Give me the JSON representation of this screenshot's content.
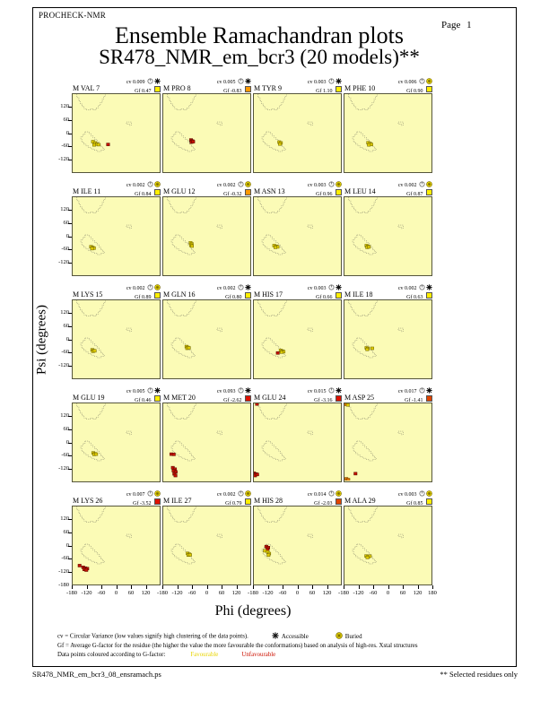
{
  "page": {
    "app_label": "PROCHECK-NMR",
    "page_label": "Page  1",
    "title": "Ensemble Ramachandran plots",
    "subtitle": "SR478_NMR_em_bcr3 (20 models)**",
    "footer_left": "SR478_NMR_em_bcr3_08_ensramach.ps",
    "footer_right": "** Selected residues only"
  },
  "axes": {
    "x_label": "Phi (degrees)",
    "y_label": "Psi (degrees)",
    "x_ticks": [
      -180,
      -120,
      -60,
      0,
      60,
      120
    ],
    "x_end_tick": 180,
    "y_ticks": [
      120,
      60,
      0,
      -60,
      -120
    ],
    "y_bottom_tick": -180,
    "x_range": [
      -180,
      180
    ],
    "y_range": [
      -180,
      180
    ]
  },
  "legend": {
    "cv_text": "cv = Circular Variance (low values signify high clustering of the data points).",
    "accessible_label": "Accessible",
    "buried_label": "Buried",
    "gf_text": "Gf = Average G-factor for the residue (the higher the value the more favourable the conformations)  based on analysis of high-res. Xstal structures",
    "colour_text": "Data points coloured according to G-factor:",
    "favourable_label": "Favourable",
    "unfavourable_label": "Unfavourable"
  },
  "colors": {
    "plot_bg": "#fbfbb6",
    "plot_border": "#55553c",
    "region_line": "#6b6b5a",
    "point_fill": {
      "y": "#ddca00",
      "r": "#c41200",
      "o": "#e07800"
    },
    "point_stroke": {
      "y": "#6e6400",
      "r": "#550800",
      "o": "#6e3a00"
    },
    "gf_swatch": {
      "yellow": "#ffee00",
      "orange": "#ff9900",
      "redorange": "#e04400",
      "red": "#dd1100"
    }
  },
  "chart_data": {
    "type": "scatter",
    "grid": "5 rows x 4 columns",
    "title": "Ensemble Ramachandran plots",
    "x_label": "Phi (degrees)",
    "y_label": "Psi (degrees)",
    "x_range": [
      -180,
      180
    ],
    "y_range": [
      -180,
      180
    ],
    "point_color_code": {
      "y": "favourable (yellow)",
      "r": "unfavourable (red)",
      "o": "intermediate (orange)"
    },
    "subplots": [
      {
        "title": "M VAL 7",
        "cv": "0.009",
        "gf": "0.47",
        "access": "accessible",
        "gf_color": "yellow",
        "points": [
          [
            -95,
            -42,
            "y"
          ],
          [
            -86,
            -48,
            "y"
          ],
          [
            -79,
            -53,
            "y"
          ],
          [
            -90,
            -57,
            "y"
          ],
          [
            -72,
            -56,
            "y"
          ],
          [
            -32,
            -55,
            "r"
          ]
        ]
      },
      {
        "title": "M PRO 8",
        "cv": "0.005",
        "gf": "-0.83",
        "access": "accessible",
        "gf_color": "orange",
        "points": [
          [
            -64,
            -34,
            "r"
          ],
          [
            -58,
            -39,
            "r"
          ],
          [
            -62,
            -44,
            "r"
          ],
          [
            -55,
            -42,
            "r"
          ]
        ]
      },
      {
        "title": "M TYR 9",
        "cv": "0.003",
        "gf": "1.10",
        "access": "accessible",
        "gf_color": "yellow",
        "points": [
          [
            -74,
            -44,
            "y"
          ],
          [
            -67,
            -48,
            "y"
          ],
          [
            -71,
            -53,
            "y"
          ]
        ]
      },
      {
        "title": "M PHE 10",
        "cv": "0.006",
        "gf": "0.90",
        "access": "buried",
        "gf_color": "yellow",
        "points": [
          [
            -81,
            -47,
            "y"
          ],
          [
            -73,
            -51,
            "y"
          ],
          [
            -68,
            -55,
            "y"
          ],
          [
            -78,
            -57,
            "y"
          ]
        ]
      },
      {
        "title": "M ILE 11",
        "cv": "0.002",
        "gf": "0.84",
        "access": "buried",
        "gf_color": "yellow",
        "points": [
          [
            -103,
            -51,
            "y"
          ],
          [
            -96,
            -55,
            "y"
          ],
          [
            -91,
            -58,
            "y"
          ],
          [
            -99,
            -60,
            "y"
          ]
        ]
      },
      {
        "title": "M GLU 12",
        "cv": "0.002",
        "gf": "-0.32",
        "access": "buried",
        "gf_color": "orange",
        "points": [
          [
            -66,
            -33,
            "y"
          ],
          [
            -61,
            -38,
            "y"
          ],
          [
            -64,
            -44,
            "y"
          ],
          [
            -60,
            -48,
            "y"
          ]
        ]
      },
      {
        "title": "M ASN 13",
        "cv": "0.003",
        "gf": "0.96",
        "access": "buried",
        "gf_color": "yellow",
        "points": [
          [
            -95,
            -46,
            "y"
          ],
          [
            -87,
            -49,
            "y"
          ],
          [
            -81,
            -52,
            "y"
          ],
          [
            -90,
            -54,
            "y"
          ]
        ]
      },
      {
        "title": "M LEU 14",
        "cv": "0.002",
        "gf": "0.87",
        "access": "buried",
        "gf_color": "yellow",
        "points": [
          [
            -88,
            -46,
            "y"
          ],
          [
            -82,
            -50,
            "y"
          ],
          [
            -85,
            -54,
            "y"
          ],
          [
            -78,
            -52,
            "y"
          ]
        ]
      },
      {
        "title": "M LYS 15",
        "cv": "0.002",
        "gf": "0.89",
        "access": "buried",
        "gf_color": "yellow",
        "points": [
          [
            -98,
            -51,
            "y"
          ],
          [
            -92,
            -55,
            "y"
          ],
          [
            -95,
            -58,
            "y"
          ],
          [
            -88,
            -56,
            "y"
          ]
        ]
      },
      {
        "title": "M GLN 16",
        "cv": "0.002",
        "gf": "0.80",
        "access": "accessible",
        "gf_color": "yellow",
        "points": [
          [
            -83,
            -36,
            "y"
          ],
          [
            -77,
            -40,
            "y"
          ],
          [
            -80,
            -44,
            "y"
          ],
          [
            -73,
            -42,
            "y"
          ]
        ]
      },
      {
        "title": "M HIS 17",
        "cv": "0.003",
        "gf": "0.66",
        "access": "accessible",
        "gf_color": "yellow",
        "points": [
          [
            -68,
            -54,
            "y"
          ],
          [
            -61,
            -57,
            "y"
          ],
          [
            -56,
            -60,
            "y"
          ],
          [
            -64,
            -62,
            "y"
          ],
          [
            -80,
            -66,
            "r"
          ]
        ]
      },
      {
        "title": "M ILE 18",
        "cv": "0.002",
        "gf": "0.63",
        "access": "accessible",
        "gf_color": "yellow",
        "points": [
          [
            -88,
            -42,
            "y"
          ],
          [
            -82,
            -45,
            "y"
          ],
          [
            -85,
            -49,
            "y"
          ],
          [
            -64,
            -44,
            "y"
          ]
        ]
      },
      {
        "title": "M GLU 19",
        "cv": "0.005",
        "gf": "0.46",
        "access": "accessible",
        "gf_color": "yellow",
        "points": [
          [
            -94,
            -51,
            "y"
          ],
          [
            -87,
            -55,
            "y"
          ],
          [
            -90,
            -58,
            "y"
          ],
          [
            -82,
            -57,
            "y"
          ]
        ]
      },
      {
        "title": "M MET 20",
        "cv": "0.093",
        "gf": "-2.62",
        "access": "accessible",
        "gf_color": "red",
        "points": [
          [
            -146,
            -57,
            "r"
          ],
          [
            -136,
            -58,
            "r"
          ],
          [
            -140,
            -120,
            "r"
          ],
          [
            -131,
            -127,
            "r"
          ],
          [
            -137,
            -134,
            "r"
          ],
          [
            -128,
            -140,
            "r"
          ],
          [
            -134,
            -149,
            "r"
          ],
          [
            -129,
            -157,
            "r"
          ]
        ]
      },
      {
        "title": "M GLU 24",
        "cv": "0.015",
        "gf": "-3.16",
        "access": "accessible",
        "gf_color": "red",
        "points": [
          [
            -167,
            177,
            "r"
          ],
          [
            -179,
            -146,
            "r"
          ],
          [
            -171,
            -150,
            "r"
          ],
          [
            -175,
            -157,
            "r"
          ],
          [
            -166,
            -152,
            "r"
          ]
        ]
      },
      {
        "title": "M ASP 25",
        "cv": "0.017",
        "gf": "-1.41",
        "access": "accessible",
        "gf_color": "redorange",
        "points": [
          [
            -174,
            176,
            "o"
          ],
          [
            -166,
            173,
            "y"
          ],
          [
            -134,
            -148,
            "r"
          ],
          [
            -172,
            -172,
            "o"
          ],
          [
            -164,
            -176,
            "o"
          ]
        ]
      },
      {
        "title": "M LYS 26",
        "cv": "0.007",
        "gf": "-3.52",
        "access": "buried",
        "gf_color": "red",
        "points": [
          [
            -151,
            -96,
            "r"
          ],
          [
            -136,
            -104,
            "r"
          ],
          [
            -127,
            -108,
            "r"
          ],
          [
            -119,
            -110,
            "r"
          ],
          [
            -131,
            -114,
            "r"
          ],
          [
            -123,
            -117,
            "r"
          ]
        ]
      },
      {
        "title": "M ILE 27",
        "cv": "0.002",
        "gf": "0.79",
        "access": "buried",
        "gf_color": "yellow",
        "points": [
          [
            -78,
            -39,
            "y"
          ],
          [
            -71,
            -43,
            "y"
          ],
          [
            -75,
            -47,
            "y"
          ],
          [
            -68,
            -46,
            "y"
          ]
        ]
      },
      {
        "title": "M HIS 28",
        "cv": "0.014",
        "gf": "-2.03",
        "access": "buried",
        "gf_color": "redorange",
        "points": [
          [
            -128,
            -7,
            "r"
          ],
          [
            -120,
            -12,
            "r"
          ],
          [
            -123,
            -20,
            "r"
          ],
          [
            -134,
            -27,
            "y"
          ],
          [
            -122,
            -32,
            "y"
          ],
          [
            -116,
            -40,
            "y"
          ],
          [
            -119,
            -47,
            "y"
          ]
        ]
      },
      {
        "title": "M ALA 29",
        "cv": "0.003",
        "gf": "0.85",
        "access": "buried",
        "gf_color": "yellow",
        "points": [
          [
            -89,
            -51,
            "y"
          ],
          [
            -81,
            -54,
            "y"
          ],
          [
            -74,
            -52,
            "y"
          ],
          [
            -84,
            -58,
            "y"
          ]
        ]
      }
    ]
  }
}
